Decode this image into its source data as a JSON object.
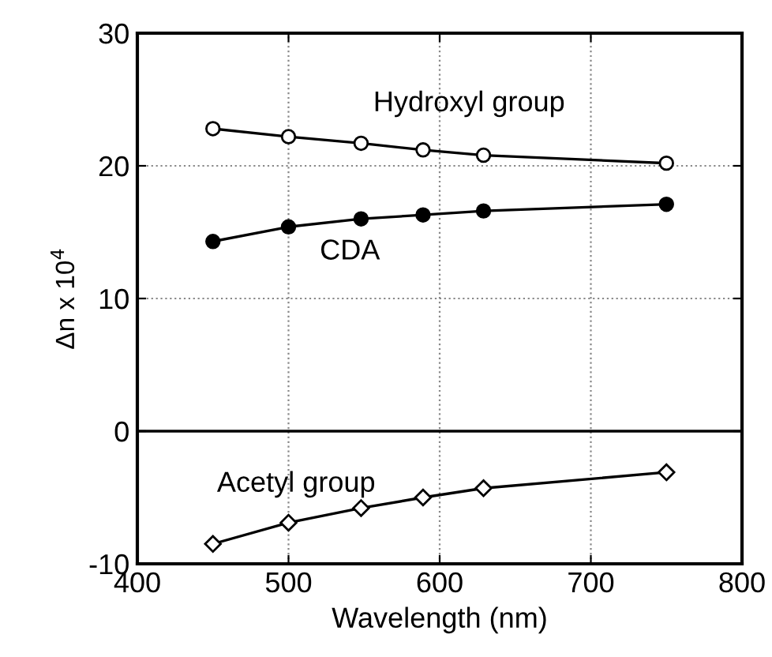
{
  "chart_data": {
    "type": "line",
    "xlabel": "Wavelength (nm)",
    "ylabel": "Δn x 10$^{4}$",
    "x": [
      450,
      500,
      548,
      589,
      629,
      750
    ],
    "series": [
      {
        "name": "Hydroxyl group",
        "color": "#ffffff",
        "marker": "circle",
        "values": [
          22.8,
          22.2,
          21.7,
          21.2,
          20.8,
          20.2
        ]
      },
      {
        "name": "CDA",
        "color": "#000000",
        "marker": "circle",
        "values": [
          14.3,
          15.4,
          16.0,
          16.3,
          16.6,
          17.1
        ]
      },
      {
        "name": "Acetyl group",
        "color": "#ffffff",
        "marker": "diamond",
        "values": [
          -8.5,
          -6.9,
          -5.8,
          -5.0,
          -4.3,
          -3.1
        ]
      }
    ],
    "ref_lines": [
      {
        "axis": "y",
        "value": 0,
        "color": "#000000",
        "line_style": "solid"
      }
    ],
    "xlim": [
      400,
      800
    ],
    "ylim": [
      -10,
      30
    ],
    "xticks": [
      400,
      500,
      600,
      700,
      800
    ],
    "yticks": [
      -10,
      0,
      10,
      20,
      30
    ],
    "grid": true,
    "line_style": "solid"
  }
}
